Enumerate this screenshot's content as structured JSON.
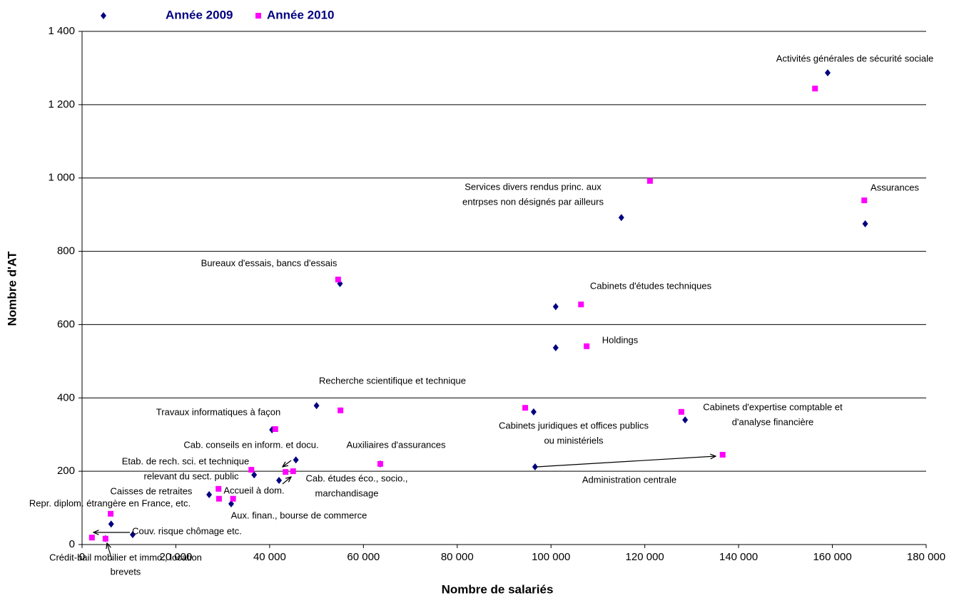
{
  "chart_data": {
    "type": "scatter",
    "x_label": "Nombre de salariés",
    "y_label": "Nombre d'AT",
    "xlim": [
      0,
      180000
    ],
    "xticks": [
      0,
      {
        "value": 20000,
        "label": "20 000"
      },
      {
        "value": 40000,
        "label": "40 000"
      },
      {
        "value": 60000,
        "label": "60 000"
      },
      {
        "value": 80000,
        "label": "80 000"
      },
      {
        "value": 100000,
        "label": "100 000"
      },
      {
        "value": 120000,
        "label": "120 000"
      },
      {
        "value": 140000,
        "label": "140 000"
      },
      {
        "value": 160000,
        "label": "160 000"
      },
      {
        "value": 180000,
        "label": "180 000"
      }
    ],
    "ylim": [
      0,
      1400
    ],
    "yticks": [
      0,
      200,
      400,
      600,
      800,
      {
        "value": 1000,
        "label": "1 000"
      },
      {
        "value": 1200,
        "label": "1 200"
      },
      {
        "value": 1400,
        "label": "1 400"
      }
    ],
    "grid": true,
    "legend": "top-left",
    "series": [
      {
        "name": "Année 2009",
        "color": "#000080",
        "marker": "diamond",
        "x": [
          159000,
          167000,
          115000,
          55000,
          101000,
          101000,
          50000,
          96300,
          128600,
          40500,
          45600,
          36700,
          42000,
          96600,
          63600,
          27100,
          31800,
          6200,
          10800,
          5000
        ],
        "y": [
          1287,
          875,
          892,
          712,
          649,
          537,
          379,
          362,
          340,
          313,
          231,
          190,
          175,
          212,
          220,
          136,
          111,
          56,
          27,
          16
        ]
      },
      {
        "name": "Année 2010",
        "color": "#ff00ff",
        "marker": "square",
        "x": [
          156300,
          121100,
          166800,
          54600,
          106400,
          107600,
          94500,
          55100,
          127800,
          41200,
          63600,
          136600,
          36100,
          43400,
          45000,
          29100,
          29200,
          32200,
          6100,
          2100,
          5000
        ],
        "y": [
          1244,
          992,
          939,
          723,
          655,
          541,
          373,
          366,
          362,
          315,
          220,
          245,
          204,
          198,
          200,
          152,
          125,
          125,
          84,
          19,
          16
        ]
      }
    ],
    "annotations": [
      "Activités générales de sécurité sociale",
      "Services divers rendus princ. aux",
      "entrpses non désignés par ailleurs",
      "Assurances",
      "Bureaux d'essais, bancs d'essais",
      "Cabinets d'études techniques",
      "Holdings",
      "Recherche scientifique et technique",
      "Travaux informatiques à façon",
      "Cabinets juridiques et offices publics",
      "ou ministériels",
      "Cabinets d'expertise comptable et",
      "d'analyse financière",
      "Cab. conseils en inform. et docu.",
      "Auxiliaires d'assurances",
      "Etab. de rech. sci. et technique",
      "relevant du sect. public",
      "Cab. études éco., socio.,",
      "marchandisage",
      "Administration centrale",
      "Caisses de retraites",
      "Accueil à dom.",
      "Repr. diplom. étrangère en France, etc.",
      "Aux. finan., bourse de commerce",
      "Couv. risque chômage etc.",
      "Crédit-bail mobilier et immo., location",
      "brevets"
    ]
  }
}
